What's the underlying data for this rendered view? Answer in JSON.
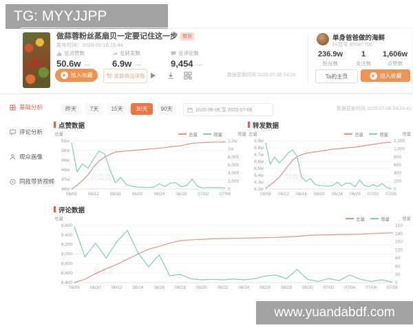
{
  "watermarks": {
    "top": "TG: MYYJJPP",
    "bottom": "www.yuandabdf.com"
  },
  "video": {
    "title": "做蒜蓉粉丝蒸扇贝一定要记住这一步",
    "tag": "带货",
    "publish": "发布时间：2020-05-16 15:44",
    "stats": [
      {
        "label": "总点赞数",
        "value": "50.6w",
        "trend": "—"
      },
      {
        "label": "总转发数",
        "value": "6.9w",
        "trend": "—"
      },
      {
        "label": "总评论数",
        "value": "9,454",
        "trend": "—"
      }
    ],
    "fav_button": "加入收藏",
    "goods_button": "关联商品详情",
    "updated": "数据更新时间 2020-07-06 04:24"
  },
  "account": {
    "name": "单身爸爸做的海鲜",
    "douyin_id": "抖音号 85587700",
    "stats": [
      {
        "value": "236.9w",
        "label": "粉丝数"
      },
      {
        "value": "1",
        "label": "关注数"
      },
      {
        "value": "1,606w",
        "label": "点赞数"
      }
    ],
    "home_button": "Ta的主页",
    "fav_button": "加入收藏"
  },
  "sidebar": {
    "items": [
      {
        "label": "基础分析",
        "active": true
      },
      {
        "label": "评论分析",
        "active": false
      },
      {
        "label": "观众画像",
        "active": false
      },
      {
        "label": "同款带货视频",
        "active": false
      }
    ]
  },
  "filters": {
    "tabs": [
      "昨天",
      "7天",
      "15天",
      "30天",
      "90天"
    ],
    "active_tab": "30天",
    "date_range": "2020-06-06 至 2020-07-06",
    "updated": "数据更新时间 2020-07-06 04:24:41"
  },
  "colors": {
    "accent_orange": "#f09250",
    "active_red": "#e2604a",
    "line_total": "#dd928a",
    "line_increment": "#7ecdc2",
    "watermark_bg": "#a2a2a2"
  },
  "chart_watermark": "抖查查",
  "chart_data": [
    {
      "type": "line",
      "title": "点赞数据",
      "left_axis": {
        "label": "总量",
        "ticks": [
          "51w",
          "50w",
          "49w",
          "48w",
          "47w",
          "46w"
        ],
        "range": [
          46,
          51
        ]
      },
      "right_axis": {
        "label": "增量",
        "ticks": [
          "1.2w",
          "1w",
          "8,000",
          "6,000",
          "4,000",
          "2,000",
          "0"
        ],
        "range": [
          0,
          12000
        ]
      },
      "x_ticks": [
        "06/08",
        "06/12",
        "06/16",
        "06/20",
        "06/24",
        "06/28",
        "07/02",
        "07/06"
      ],
      "legend": [
        {
          "name": "总量",
          "color": "#dd928a"
        },
        {
          "name": "增量",
          "color": "#7ecdc2"
        }
      ],
      "series": [
        {
          "name": "总量",
          "axis": "left",
          "color": "#dd928a",
          "values": [
            46.0,
            46.4,
            46.9,
            47.5,
            48.3,
            48.9,
            49.3,
            49.6,
            49.85,
            49.9,
            49.95,
            50.0,
            50.05,
            50.1,
            50.15,
            50.2,
            50.25,
            50.3,
            50.4,
            50.45,
            50.5,
            50.65,
            50.75,
            50.8,
            50.82,
            50.85,
            50.87,
            50.88,
            50.9
          ]
        },
        {
          "name": "增量",
          "axis": "right",
          "color": "#7ecdc2",
          "values": [
            11500,
            4300,
            6300,
            5200,
            7500,
            9500,
            8800,
            4800,
            1600,
            2900,
            1100,
            700,
            500,
            450,
            400,
            500,
            1300,
            600,
            1500,
            1600,
            600,
            900,
            2500,
            600,
            300,
            400,
            350,
            400,
            300
          ]
        }
      ]
    },
    {
      "type": "line",
      "title": "转发数据",
      "left_axis": {
        "label": "总量",
        "ticks": [
          "6.9w",
          "6.8w",
          "6.7w",
          "6.6w",
          "6.5w",
          "6.4w",
          "6.3w",
          "6.2w"
        ],
        "range": [
          6.2,
          6.9
        ]
      },
      "right_axis": {
        "label": "增量",
        "ticks": [
          "1,200",
          "1,000",
          "800",
          "600",
          "400",
          "200",
          "0"
        ],
        "range": [
          0,
          1200
        ]
      },
      "x_ticks": [
        "06/08",
        "06/12",
        "06/16",
        "06/20",
        "06/24",
        "06/28",
        "07/02",
        "07/06"
      ],
      "legend": [
        {
          "name": "总量",
          "color": "#dd928a"
        },
        {
          "name": "增量",
          "color": "#7ecdc2"
        }
      ],
      "series": [
        {
          "name": "总量",
          "axis": "left",
          "color": "#dd928a",
          "values": [
            6.21,
            6.26,
            6.31,
            6.37,
            6.45,
            6.54,
            6.62,
            6.67,
            6.7,
            6.72,
            6.73,
            6.74,
            6.75,
            6.76,
            6.77,
            6.78,
            6.785,
            6.79,
            6.8,
            6.805,
            6.81,
            6.82,
            6.83,
            6.84,
            6.85,
            6.86,
            6.87,
            6.875,
            6.88
          ]
        },
        {
          "name": "增量",
          "axis": "right",
          "color": "#7ecdc2",
          "values": [
            1150,
            620,
            800,
            650,
            760,
            900,
            975,
            820,
            300,
            190,
            260,
            120,
            90,
            80,
            70,
            90,
            170,
            80,
            150,
            140,
            60,
            230,
            90,
            60,
            110,
            60,
            140,
            40,
            15
          ]
        }
      ]
    },
    {
      "type": "line",
      "title": "评论数据",
      "left_axis": {
        "label": "总量",
        "ticks": [
          "9,600",
          "9,400",
          "9,200",
          "9,000",
          "8,800",
          "8,600",
          "8,400"
        ],
        "range": [
          8400,
          9600
        ]
      },
      "right_axis": {
        "label": "增量",
        "ticks": [
          "210",
          "180",
          "150",
          "120",
          "90",
          "60",
          "30",
          "0"
        ],
        "range": [
          0,
          210
        ]
      },
      "x_ticks": [
        "06/08",
        "06/10",
        "06/12",
        "06/14",
        "06/16",
        "06/18",
        "06/20",
        "06/22",
        "06/24",
        "06/26",
        "06/28",
        "06/30",
        "07/02",
        "07/04",
        "07/06",
        "07/08"
      ],
      "legend": [
        {
          "name": "总量",
          "color": "#dd928a"
        },
        {
          "name": "增量",
          "color": "#7ecdc2"
        }
      ],
      "series": [
        {
          "name": "总量",
          "axis": "left",
          "color": "#dd928a",
          "values": [
            8400,
            8470,
            8590,
            8690,
            8780,
            8890,
            9000,
            9100,
            9160,
            9230,
            9280,
            9300,
            9310,
            9320,
            9325,
            9330,
            9335,
            9340,
            9345,
            9350,
            9360,
            9370,
            9390,
            9400,
            9405,
            9410,
            9415,
            9420,
            9430,
            9440,
            9445
          ]
        },
        {
          "name": "增量",
          "axis": "right",
          "color": "#7ecdc2",
          "values": [
            205,
            95,
            145,
            90,
            150,
            192,
            110,
            58,
            102,
            25,
            30,
            14,
            10,
            12,
            10,
            13,
            10,
            14,
            24,
            28,
            14,
            48,
            12,
            4,
            15,
            7,
            28,
            12,
            4,
            10,
            2
          ]
        }
      ]
    }
  ]
}
